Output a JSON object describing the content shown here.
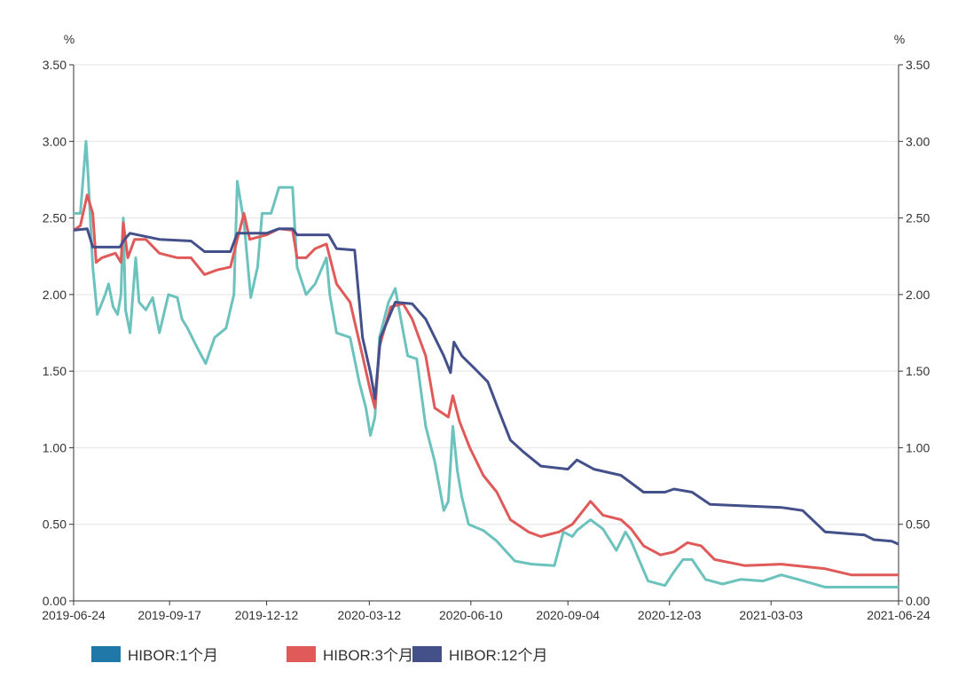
{
  "chart_data": {
    "type": "line",
    "title": "",
    "ylabel_left": "%",
    "ylabel_right": "%",
    "ylim": [
      0,
      3.5
    ],
    "yticks": [
      "0.00",
      "0.50",
      "1.00",
      "1.50",
      "2.00",
      "2.50",
      "3.00",
      "3.50"
    ],
    "x_start_date": "2019-06-24",
    "x_unit": "days since start date",
    "xlim_days": [
      0,
      731
    ],
    "xticks": [
      {
        "label": "2019-06-24",
        "day": 0
      },
      {
        "label": "2019-09-17",
        "day": 85
      },
      {
        "label": "2019-12-12",
        "day": 171
      },
      {
        "label": "2020-03-12",
        "day": 262
      },
      {
        "label": "2020-06-10",
        "day": 352
      },
      {
        "label": "2020-09-04",
        "day": 438
      },
      {
        "label": "2020-12-03",
        "day": 528
      },
      {
        "label": "2021-03-03",
        "day": 618
      },
      {
        "label": "2021-06-24",
        "day": 731
      }
    ],
    "grid": true,
    "legend_position": "bottom-left",
    "series": [
      {
        "name": "HIBOR:1个月",
        "legend_color": "#1f78a8",
        "line_color": "#6cc2bd",
        "points": [
          [
            0,
            2.53
          ],
          [
            6,
            2.53
          ],
          [
            11,
            3.0
          ],
          [
            13,
            2.76
          ],
          [
            17,
            2.18
          ],
          [
            21,
            1.87
          ],
          [
            28,
            2.0
          ],
          [
            31,
            2.07
          ],
          [
            35,
            1.92
          ],
          [
            39,
            1.87
          ],
          [
            42,
            2.0
          ],
          [
            44,
            2.5
          ],
          [
            46,
            1.9
          ],
          [
            50,
            1.75
          ],
          [
            55,
            2.24
          ],
          [
            58,
            1.95
          ],
          [
            64,
            1.9
          ],
          [
            70,
            1.98
          ],
          [
            76,
            1.75
          ],
          [
            84,
            2.0
          ],
          [
            92,
            1.98
          ],
          [
            96,
            1.84
          ],
          [
            101,
            1.78
          ],
          [
            109,
            1.66
          ],
          [
            117,
            1.55
          ],
          [
            125,
            1.72
          ],
          [
            135,
            1.78
          ],
          [
            142,
            2.0
          ],
          [
            145,
            2.74
          ],
          [
            151,
            2.47
          ],
          [
            157,
            1.98
          ],
          [
            163,
            2.18
          ],
          [
            167,
            2.53
          ],
          [
            175,
            2.53
          ],
          [
            182,
            2.7
          ],
          [
            194,
            2.7
          ],
          [
            198,
            2.18
          ],
          [
            206,
            2.0
          ],
          [
            214,
            2.07
          ],
          [
            224,
            2.24
          ],
          [
            227,
            2.0
          ],
          [
            233,
            1.75
          ],
          [
            245,
            1.72
          ],
          [
            253,
            1.43
          ],
          [
            259,
            1.26
          ],
          [
            263,
            1.08
          ],
          [
            267,
            1.2
          ],
          [
            271,
            1.72
          ],
          [
            279,
            1.95
          ],
          [
            285,
            2.04
          ],
          [
            290,
            1.84
          ],
          [
            296,
            1.6
          ],
          [
            304,
            1.58
          ],
          [
            312,
            1.14
          ],
          [
            320,
            0.91
          ],
          [
            328,
            0.59
          ],
          [
            332,
            0.65
          ],
          [
            336,
            1.14
          ],
          [
            340,
            0.85
          ],
          [
            344,
            0.68
          ],
          [
            350,
            0.5
          ],
          [
            363,
            0.46
          ],
          [
            375,
            0.39
          ],
          [
            391,
            0.26
          ],
          [
            406,
            0.24
          ],
          [
            426,
            0.23
          ],
          [
            434,
            0.45
          ],
          [
            442,
            0.42
          ],
          [
            446,
            0.46
          ],
          [
            458,
            0.53
          ],
          [
            469,
            0.47
          ],
          [
            481,
            0.33
          ],
          [
            489,
            0.45
          ],
          [
            494,
            0.39
          ],
          [
            509,
            0.13
          ],
          [
            524,
            0.1
          ],
          [
            531,
            0.18
          ],
          [
            540,
            0.27
          ],
          [
            548,
            0.27
          ],
          [
            560,
            0.14
          ],
          [
            575,
            0.11
          ],
          [
            591,
            0.14
          ],
          [
            611,
            0.13
          ],
          [
            627,
            0.17
          ],
          [
            642,
            0.14
          ],
          [
            666,
            0.09
          ],
          [
            689,
            0.09
          ],
          [
            731,
            0.09
          ]
        ]
      },
      {
        "name": "HIBOR:3个月",
        "legend_color": "#e05a5a",
        "line_color": "#e05a5a",
        "points": [
          [
            0,
            2.42
          ],
          [
            6,
            2.45
          ],
          [
            12,
            2.65
          ],
          [
            17,
            2.53
          ],
          [
            20,
            2.21
          ],
          [
            25,
            2.24
          ],
          [
            37,
            2.27
          ],
          [
            42,
            2.21
          ],
          [
            44,
            2.47
          ],
          [
            48,
            2.24
          ],
          [
            54,
            2.36
          ],
          [
            64,
            2.36
          ],
          [
            76,
            2.27
          ],
          [
            92,
            2.24
          ],
          [
            104,
            2.24
          ],
          [
            116,
            2.13
          ],
          [
            127,
            2.16
          ],
          [
            139,
            2.18
          ],
          [
            145,
            2.36
          ],
          [
            151,
            2.53
          ],
          [
            156,
            2.36
          ],
          [
            171,
            2.39
          ],
          [
            182,
            2.43
          ],
          [
            194,
            2.42
          ],
          [
            198,
            2.24
          ],
          [
            206,
            2.24
          ],
          [
            214,
            2.3
          ],
          [
            224,
            2.33
          ],
          [
            233,
            2.07
          ],
          [
            245,
            1.95
          ],
          [
            256,
            1.6
          ],
          [
            263,
            1.37
          ],
          [
            267,
            1.26
          ],
          [
            271,
            1.66
          ],
          [
            281,
            1.92
          ],
          [
            292,
            1.94
          ],
          [
            300,
            1.84
          ],
          [
            312,
            1.6
          ],
          [
            320,
            1.26
          ],
          [
            332,
            1.2
          ],
          [
            336,
            1.34
          ],
          [
            342,
            1.17
          ],
          [
            351,
            1.0
          ],
          [
            363,
            0.82
          ],
          [
            375,
            0.71
          ],
          [
            387,
            0.53
          ],
          [
            403,
            0.45
          ],
          [
            414,
            0.42
          ],
          [
            430,
            0.45
          ],
          [
            442,
            0.5
          ],
          [
            458,
            0.65
          ],
          [
            469,
            0.56
          ],
          [
            485,
            0.53
          ],
          [
            494,
            0.47
          ],
          [
            505,
            0.36
          ],
          [
            520,
            0.3
          ],
          [
            532,
            0.32
          ],
          [
            544,
            0.38
          ],
          [
            556,
            0.36
          ],
          [
            568,
            0.27
          ],
          [
            595,
            0.23
          ],
          [
            627,
            0.24
          ],
          [
            666,
            0.21
          ],
          [
            689,
            0.17
          ],
          [
            731,
            0.17
          ]
        ]
      },
      {
        "name": "HIBOR:12个月",
        "legend_color": "#44508a",
        "line_color": "#44508a",
        "points": [
          [
            0,
            2.42
          ],
          [
            12,
            2.43
          ],
          [
            17,
            2.31
          ],
          [
            41,
            2.31
          ],
          [
            45,
            2.36
          ],
          [
            50,
            2.4
          ],
          [
            76,
            2.36
          ],
          [
            104,
            2.35
          ],
          [
            116,
            2.28
          ],
          [
            139,
            2.28
          ],
          [
            145,
            2.4
          ],
          [
            171,
            2.4
          ],
          [
            182,
            2.43
          ],
          [
            194,
            2.43
          ],
          [
            198,
            2.39
          ],
          [
            226,
            2.39
          ],
          [
            233,
            2.3
          ],
          [
            249,
            2.29
          ],
          [
            256,
            1.72
          ],
          [
            263,
            1.49
          ],
          [
            267,
            1.32
          ],
          [
            272,
            1.72
          ],
          [
            285,
            1.95
          ],
          [
            300,
            1.94
          ],
          [
            312,
            1.84
          ],
          [
            328,
            1.6
          ],
          [
            334,
            1.49
          ],
          [
            337,
            1.69
          ],
          [
            344,
            1.6
          ],
          [
            355,
            1.52
          ],
          [
            367,
            1.43
          ],
          [
            379,
            1.2
          ],
          [
            387,
            1.05
          ],
          [
            399,
            0.97
          ],
          [
            414,
            0.88
          ],
          [
            438,
            0.86
          ],
          [
            446,
            0.92
          ],
          [
            461,
            0.86
          ],
          [
            485,
            0.82
          ],
          [
            505,
            0.71
          ],
          [
            524,
            0.71
          ],
          [
            532,
            0.73
          ],
          [
            548,
            0.71
          ],
          [
            564,
            0.63
          ],
          [
            595,
            0.62
          ],
          [
            627,
            0.61
          ],
          [
            646,
            0.59
          ],
          [
            666,
            0.45
          ],
          [
            701,
            0.43
          ],
          [
            709,
            0.4
          ],
          [
            725,
            0.39
          ],
          [
            731,
            0.37
          ]
        ]
      }
    ]
  }
}
